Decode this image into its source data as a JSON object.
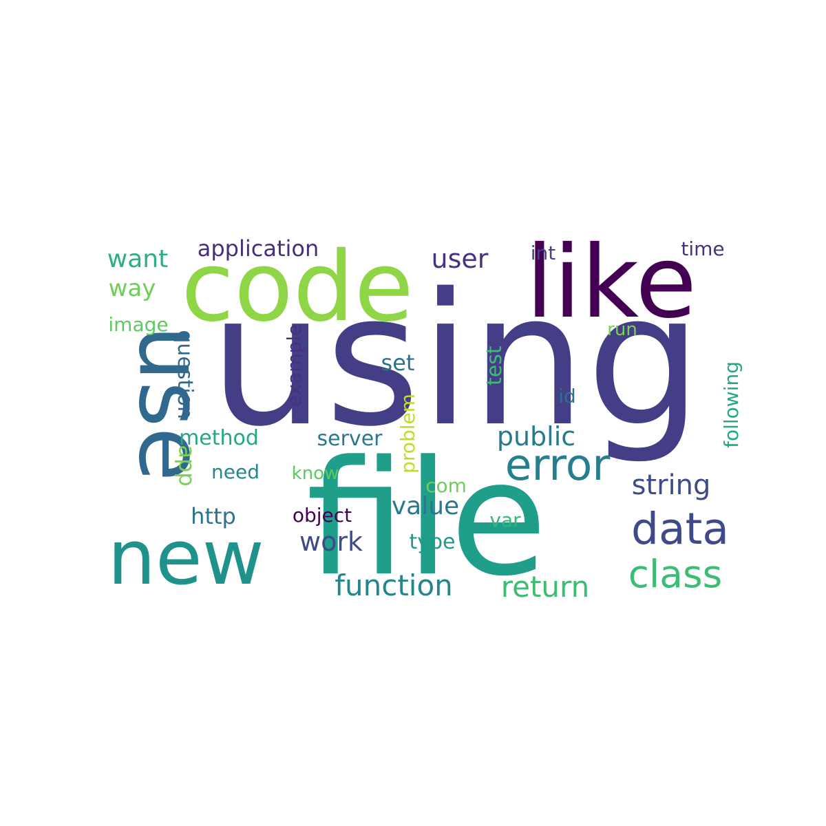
{
  "words": [
    {
      "text": "using",
      "color": "#433e85"
    },
    {
      "text": "file",
      "color": "#1f9e89"
    },
    {
      "text": "code",
      "color": "#8ed645"
    },
    {
      "text": "like",
      "color": "#440154"
    },
    {
      "text": "use",
      "color": "#31688e"
    },
    {
      "text": "new",
      "color": "#20928c"
    },
    {
      "text": "error",
      "color": "#277f8e"
    },
    {
      "text": "data",
      "color": "#3e4a89"
    },
    {
      "text": "class",
      "color": "#3dbc74"
    },
    {
      "text": "function",
      "color": "#25848e"
    },
    {
      "text": "return",
      "color": "#3dbc74"
    },
    {
      "text": "string",
      "color": "#3e4a89"
    },
    {
      "text": "public",
      "color": "#2a788e"
    },
    {
      "text": "work",
      "color": "#3e4a89"
    },
    {
      "text": "value",
      "color": "#2a788e"
    },
    {
      "text": "user",
      "color": "#46327e"
    },
    {
      "text": "application",
      "color": "#472d7b"
    },
    {
      "text": "want",
      "color": "#2ab07f"
    },
    {
      "text": "way",
      "color": "#6ece58"
    },
    {
      "text": "image",
      "color": "#5ec962"
    },
    {
      "text": "question",
      "color": "#31688e"
    },
    {
      "text": "method",
      "color": "#22a884"
    },
    {
      "text": "app",
      "color": "#7ad151"
    },
    {
      "text": "http",
      "color": "#2c728e"
    },
    {
      "text": "need",
      "color": "#23898e"
    },
    {
      "text": "server",
      "color": "#2a788e"
    },
    {
      "text": "object",
      "color": "#440154"
    },
    {
      "text": "know",
      "color": "#5ec962"
    },
    {
      "text": "example",
      "color": "#46327e"
    },
    {
      "text": "set",
      "color": "#2c728e"
    },
    {
      "text": "problem",
      "color": "#bddf26"
    },
    {
      "text": "com",
      "color": "#6ece58"
    },
    {
      "text": "type",
      "color": "#1f9a8a"
    },
    {
      "text": "var",
      "color": "#35b779"
    },
    {
      "text": "test",
      "color": "#3dbc74"
    },
    {
      "text": "id",
      "color": "#2c728e"
    },
    {
      "text": "int",
      "color": "#414487"
    },
    {
      "text": "time",
      "color": "#46327e"
    },
    {
      "text": "run",
      "color": "#7ad151"
    },
    {
      "text": "following",
      "color": "#22a884"
    }
  ]
}
